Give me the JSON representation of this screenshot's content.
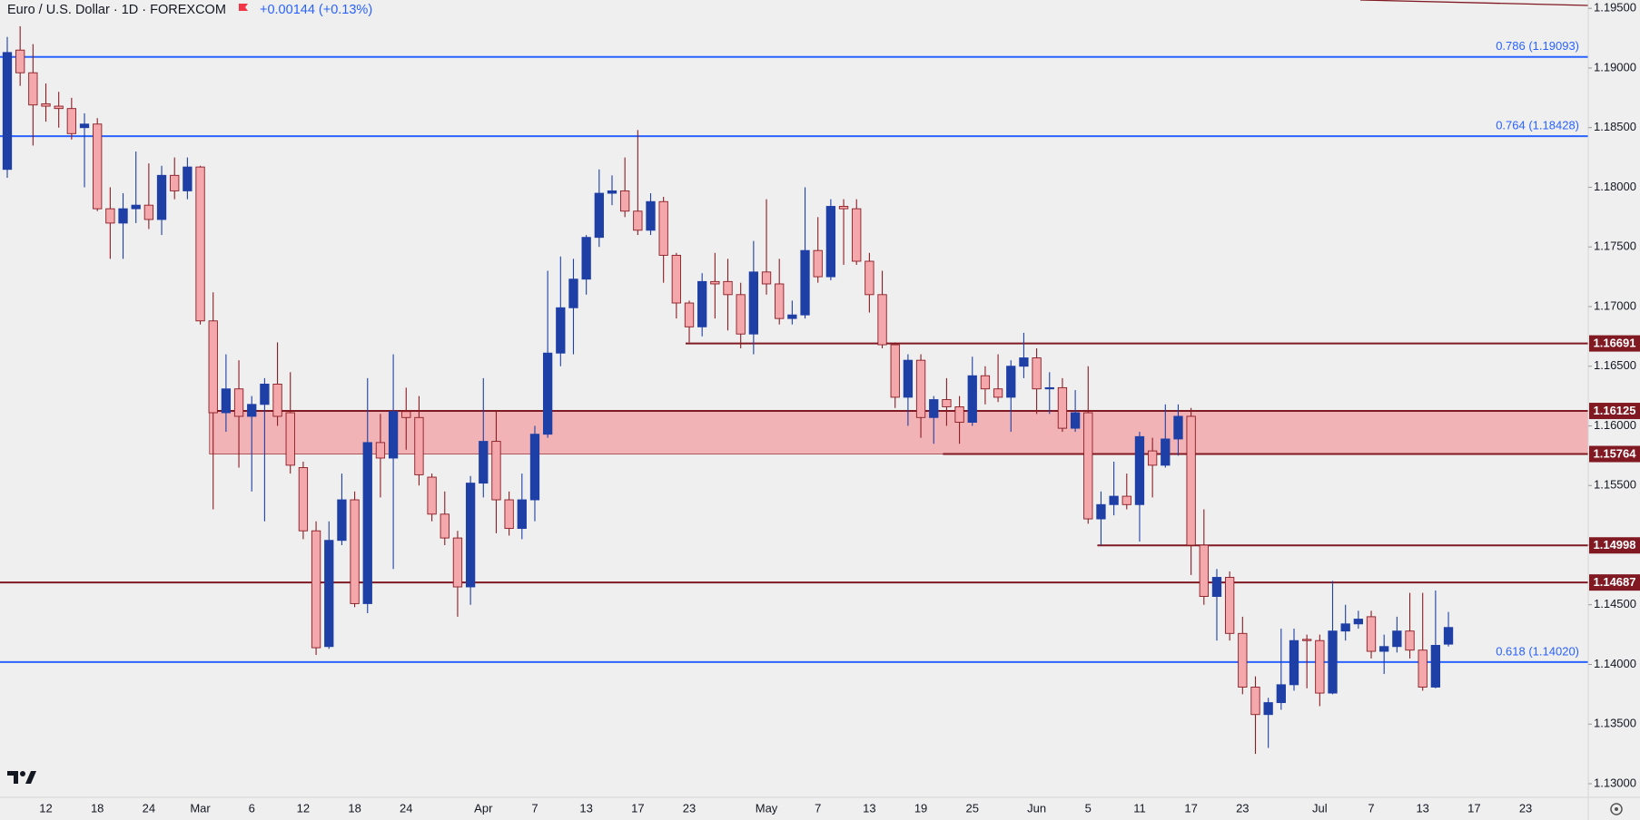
{
  "header": {
    "title": "Euro / U.S. Dollar · 1D · FOREXCOM",
    "change": "+0.00144 (+0.13%)"
  },
  "chart_data": {
    "type": "candlestick",
    "categories": [
      null,
      null,
      null,
      "12",
      null,
      null,
      null,
      "18",
      null,
      null,
      null,
      "24",
      null,
      null,
      null,
      "Mar",
      null,
      null,
      null,
      "6",
      null,
      null,
      null,
      "12",
      null,
      null,
      null,
      "18",
      null,
      null,
      null,
      "24",
      null,
      null,
      null,
      null,
      null,
      "Apr",
      null,
      null,
      null,
      "7",
      null,
      null,
      null,
      "13",
      null,
      null,
      null,
      "17",
      null,
      null,
      null,
      "23",
      null,
      null,
      null,
      null,
      null,
      "May",
      null,
      null,
      null,
      "7",
      null,
      null,
      null,
      "13",
      null,
      null,
      null,
      "19",
      null,
      null,
      null,
      "25",
      null,
      null,
      null,
      null,
      "Jun",
      null,
      null,
      null,
      "5",
      null,
      null,
      null,
      "11",
      null,
      null,
      null,
      "17",
      null,
      null,
      null,
      "23",
      null,
      null,
      null,
      null,
      null,
      "Jul",
      null,
      null,
      null,
      "7",
      null,
      null,
      null,
      "13",
      null,
      null,
      null,
      "17",
      null,
      null,
      null,
      "23",
      null,
      null,
      null,
      null
    ],
    "open": [
      1.1815,
      1.1915,
      1.1896,
      1.187,
      1.1868,
      1.1866,
      1.185,
      1.1853,
      1.1782,
      1.177,
      1.1782,
      1.1785,
      1.1773,
      1.181,
      1.1797,
      1.1817,
      1.1688,
      1.1611,
      1.1631,
      1.1608,
      1.1618,
      1.1635,
      1.1611,
      1.1565,
      1.1512,
      1.1415,
      1.1504,
      1.1538,
      1.1451,
      1.1586,
      1.1573,
      1.1612,
      1.1607,
      1.1557,
      1.1526,
      1.1506,
      1.1465,
      1.1552,
      1.1587,
      1.1538,
      1.1514,
      1.1538,
      1.1593,
      1.1661,
      1.1699,
      1.1723,
      1.1758,
      1.1795,
      1.1797,
      1.178,
      1.1764,
      1.1788,
      1.1743,
      1.1703,
      1.1683,
      1.1721,
      1.1721,
      1.171,
      1.1677,
      1.1729,
      1.1719,
      1.169,
      1.1693,
      1.1747,
      1.1725,
      1.1784,
      1.1782,
      1.1738,
      1.171,
      1.1668,
      1.1624,
      1.1655,
      1.1607,
      1.1622,
      1.1616,
      1.1603,
      1.1642,
      1.1631,
      1.1624,
      1.165,
      1.1657,
      1.1631,
      1.1632,
      1.1598,
      1.1611,
      1.1522,
      1.1534,
      1.1541,
      1.1534,
      1.1579,
      1.1567,
      1.1589,
      1.1608,
      1.15,
      1.1457,
      1.1473,
      1.1426,
      1.1381,
      1.1358,
      1.1368,
      1.1383,
      1.1421,
      1.142,
      1.1376,
      1.1428,
      1.1434,
      1.144,
      1.1411,
      1.1415,
      1.1428,
      1.1412,
      1.1381,
      1.1417,
      null,
      null,
      null,
      null,
      null,
      null,
      null,
      null,
      null,
      null
    ],
    "high": [
      1.1926,
      1.1935,
      1.192,
      1.1887,
      1.188,
      1.1875,
      1.1862,
      1.1858,
      1.18,
      1.1795,
      1.183,
      1.182,
      1.1818,
      1.1825,
      1.1825,
      1.1818,
      1.1712,
      1.166,
      1.1655,
      1.1625,
      1.164,
      1.167,
      1.1645,
      1.157,
      1.152,
      1.152,
      1.156,
      1.1545,
      1.164,
      1.161,
      1.166,
      1.1632,
      1.1625,
      1.156,
      1.1545,
      1.1512,
      1.1558,
      1.164,
      1.1612,
      1.1545,
      1.156,
      1.16,
      1.173,
      1.1742,
      1.174,
      1.176,
      1.1815,
      1.181,
      1.1825,
      1.1848,
      1.1795,
      1.1792,
      1.1745,
      1.1705,
      1.1728,
      1.1745,
      1.174,
      1.172,
      1.1755,
      1.179,
      1.174,
      1.1705,
      1.18,
      1.1775,
      1.179,
      1.179,
      1.179,
      1.1745,
      1.173,
      1.167,
      1.166,
      1.166,
      1.1625,
      1.164,
      1.1625,
      1.1658,
      1.165,
      1.166,
      1.1655,
      1.1678,
      1.1665,
      1.1645,
      1.164,
      1.163,
      1.165,
      1.1545,
      1.157,
      1.156,
      1.1595,
      1.159,
      1.1618,
      1.1618,
      1.1615,
      1.153,
      1.148,
      1.1478,
      1.144,
      1.139,
      1.1372,
      1.143,
      1.143,
      1.1425,
      1.1425,
      1.147,
      1.145,
      1.1445,
      1.1445,
      1.1425,
      1.144,
      1.146,
      1.146,
      1.1462,
      1.1444,
      null,
      null,
      null,
      null,
      null,
      null,
      null,
      null,
      null,
      null
    ],
    "low": [
      1.1808,
      1.1885,
      1.1835,
      1.1855,
      1.185,
      1.184,
      1.18,
      1.178,
      1.174,
      1.174,
      1.177,
      1.1765,
      1.176,
      1.179,
      1.179,
      1.1685,
      1.153,
      1.1595,
      1.1565,
      1.1545,
      1.152,
      1.16,
      1.156,
      1.1505,
      1.1408,
      1.1413,
      1.15,
      1.1448,
      1.1443,
      1.154,
      1.148,
      1.158,
      1.155,
      1.152,
      1.15,
      1.144,
      1.145,
      1.154,
      1.151,
      1.1508,
      1.1505,
      1.152,
      1.159,
      1.165,
      1.166,
      1.171,
      1.175,
      1.1785,
      1.1775,
      1.176,
      1.176,
      1.172,
      1.169,
      1.167,
      1.1675,
      1.169,
      1.168,
      1.1665,
      1.166,
      1.171,
      1.1685,
      1.1685,
      1.169,
      1.172,
      1.1722,
      1.1735,
      1.1735,
      1.1695,
      1.1665,
      1.1615,
      1.16,
      1.159,
      1.1585,
      1.16,
      1.1585,
      1.16,
      1.1618,
      1.162,
      1.1595,
      1.164,
      1.161,
      1.161,
      1.1595,
      1.1595,
      1.1518,
      1.15,
      1.1525,
      1.153,
      1.1503,
      1.154,
      1.1565,
      1.1575,
      1.1475,
      1.145,
      1.142,
      1.142,
      1.1375,
      1.1325,
      1.133,
      1.1362,
      1.1378,
      1.138,
      1.1365,
      1.1375,
      1.142,
      1.143,
      1.1405,
      1.1392,
      1.141,
      1.1405,
      1.1378,
      1.138,
      1.1415,
      null,
      null,
      null,
      null,
      null,
      null,
      null,
      null,
      null,
      null
    ],
    "close": [
      1.1913,
      1.1896,
      1.1869,
      1.1868,
      1.1866,
      1.1845,
      1.1853,
      1.1782,
      1.177,
      1.1782,
      1.1785,
      1.1773,
      1.181,
      1.1797,
      1.1817,
      1.1688,
      1.1611,
      1.1631,
      1.1608,
      1.1618,
      1.1635,
      1.1608,
      1.1567,
      1.1512,
      1.1414,
      1.1504,
      1.1538,
      1.1451,
      1.1586,
      1.1573,
      1.1612,
      1.1607,
      1.1559,
      1.1526,
      1.1506,
      1.1465,
      1.1552,
      1.1587,
      1.1538,
      1.1514,
      1.1538,
      1.1593,
      1.1661,
      1.1699,
      1.1723,
      1.1758,
      1.1795,
      1.1797,
      1.178,
      1.1764,
      1.1788,
      1.1743,
      1.1703,
      1.1683,
      1.1721,
      1.1719,
      1.171,
      1.1677,
      1.1729,
      1.1719,
      1.169,
      1.1693,
      1.1747,
      1.1725,
      1.1784,
      1.1782,
      1.1738,
      1.171,
      1.1668,
      1.1624,
      1.1655,
      1.1607,
      1.1622,
      1.1616,
      1.1603,
      1.1642,
      1.1631,
      1.1624,
      1.165,
      1.1657,
      1.1631,
      1.1632,
      1.1598,
      1.1611,
      1.1522,
      1.1534,
      1.1541,
      1.1534,
      1.1591,
      1.1567,
      1.1589,
      1.1608,
      1.15,
      1.1457,
      1.1473,
      1.1426,
      1.1381,
      1.1358,
      1.1368,
      1.1383,
      1.142,
      1.142,
      1.1376,
      1.1428,
      1.1434,
      1.1438,
      1.1411,
      1.1415,
      1.1428,
      1.1412,
      1.1381,
      1.1416,
      1.1431,
      null,
      null,
      null,
      null,
      null,
      null,
      null,
      null,
      null,
      null
    ],
    "up_color": "#1e3fa6",
    "down_color": "#f4a8ab",
    "down_border": "#8a1c24",
    "ylim": [
      1.12886,
      1.1957
    ],
    "yticks": [
      {
        "value": 1.13,
        "label": "1.13000"
      },
      {
        "value": 1.135,
        "label": "1.13500"
      },
      {
        "value": 1.14,
        "label": "1.14000"
      },
      {
        "value": 1.145,
        "label": "1.14500"
      },
      {
        "value": 1.15,
        "label": "1.15000"
      },
      {
        "value": 1.155,
        "label": "1.15500"
      },
      {
        "value": 1.16,
        "label": "1.16000"
      },
      {
        "value": 1.165,
        "label": "1.16500"
      },
      {
        "value": 1.17,
        "label": "1.17000"
      },
      {
        "value": 1.175,
        "label": "1.17500"
      },
      {
        "value": 1.18,
        "label": "1.18000"
      },
      {
        "value": 1.185,
        "label": "1.18500"
      },
      {
        "value": 1.19,
        "label": "1.19000"
      },
      {
        "value": 1.195,
        "label": "1.19500"
      }
    ],
    "levels": [
      {
        "value": 1.16691,
        "color": "#801922"
      },
      {
        "value": 1.16125,
        "color": "#801922"
      },
      {
        "value": 1.15764,
        "color": "#801922"
      },
      {
        "value": 1.14998,
        "color": "#801922"
      },
      {
        "value": 1.14687,
        "color": "#801922"
      }
    ],
    "zone_color": "#f2b3b6",
    "fib_levels": [
      {
        "value": 1.19093,
        "label": "0.786 (1.19093)",
        "color": "#2962ff"
      },
      {
        "value": 1.18428,
        "label": "0.764 (1.18428)",
        "color": "#2962ff"
      },
      {
        "value": 1.1402,
        "label": "0.618 (1.14020)",
        "color": "#2962ff"
      }
    ]
  }
}
